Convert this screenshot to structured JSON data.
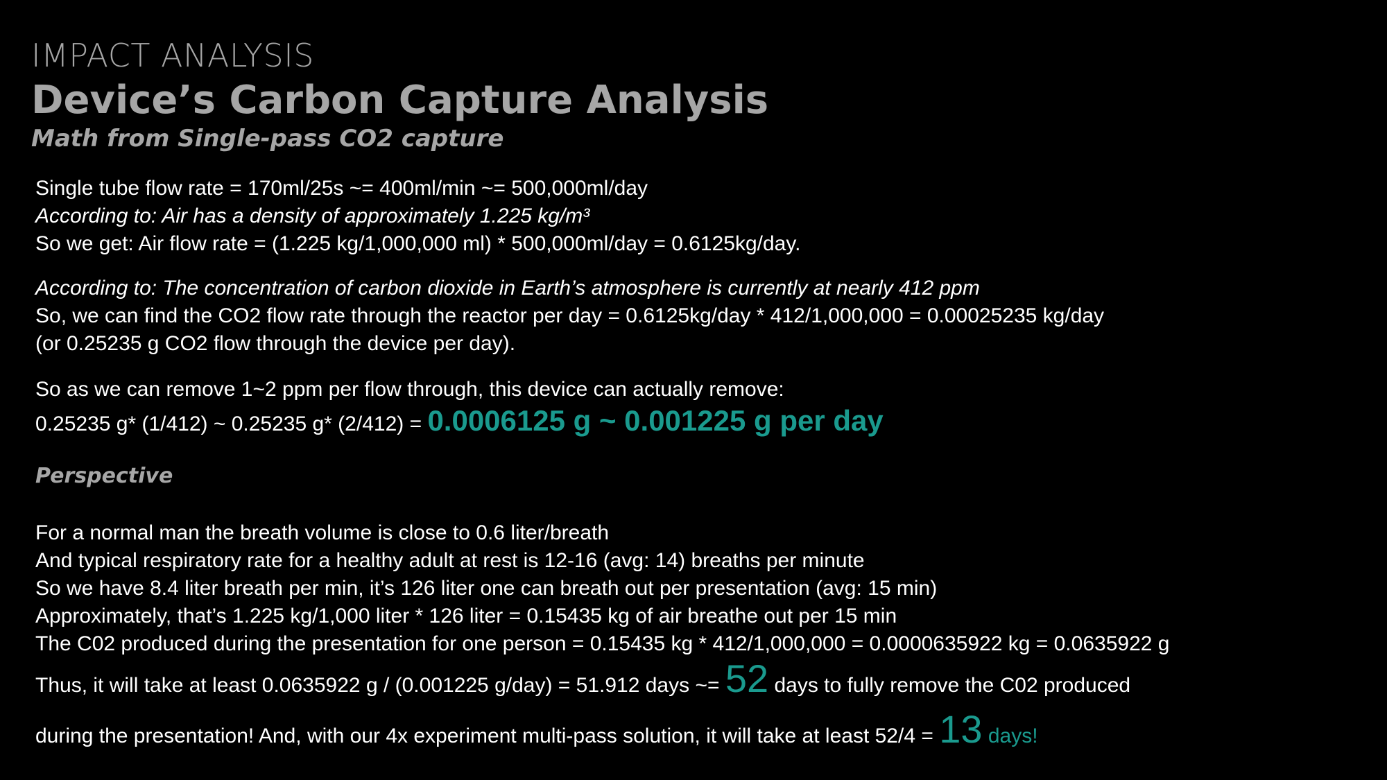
{
  "header": {
    "section_label": "IMPACT ANALYSIS",
    "title": "Device’s Carbon Capture Analysis",
    "subtitle": "Math from Single-pass CO2 capture"
  },
  "para1": {
    "line1": "Single tube flow rate = 170ml/25s ~= 400ml/min ~= 500,000ml/day",
    "line2": "According to: Air has a density of approximately 1.225 kg/m³",
    "line3": "So we get: Air flow rate =  (1.225 kg/1,000,000 ml) * 500,000ml/day = 0.6125kg/day."
  },
  "para2": {
    "line1": "According to: The concentration of carbon dioxide in Earth’s atmosphere is currently at nearly 412 ppm",
    "line2": "So, we can find the CO2 flow rate through the reactor per day = 0.6125kg/day * 412/1,000,000 = 0.00025235 kg/day",
    "line3": "(or 0.25235 g CO2 flow through the device per day)."
  },
  "para3": {
    "line1": "So as we can remove 1~2 ppm per flow through, this device can actually remove:",
    "line2_prefix": "0.25235 g* (1/412) ~ 0.25235 g* (2/412) = ",
    "line2_result": "0.0006125 g ~ 0.001225 g per day"
  },
  "perspective": {
    "heading": "Perspective",
    "line1": "For a normal man the breath volume is close to 0.6 liter/breath",
    "line2": "And typical respiratory rate for a healthy adult at rest is 12-16 (avg: 14) breaths per minute",
    "line3": "So we have 8.4 liter breath per min, it’s 126 liter one can breath out per presentation (avg: 15 min)",
    "line4": "Approximately, that’s 1.225 kg/1,000 liter * 126 liter = 0.15435 kg of air breathe out per 15 min",
    "line5": "The C02 produced during the presentation for one person =  0.15435 kg  * 412/1,000,000 = 0.0000635922 kg = 0.0635922 g"
  },
  "conclusion": {
    "line1_prefix": "Thus, it will take at least 0.0635922 g / (0.001225 g/day) = 51.912 days ~= ",
    "line1_number": "52",
    "line1_suffix": " days to fully remove the C02 produced",
    "line2_prefix": "during the presentation! And, with our 4x experiment multi-pass solution, it will take at least 52/4 = ",
    "line2_number": "13",
    "line2_suffix": " days!"
  },
  "colors": {
    "background": "#000000",
    "heading_gray": "#a6a6a6",
    "body_text": "#ffffff",
    "accent_teal": "#1a9a8e"
  }
}
